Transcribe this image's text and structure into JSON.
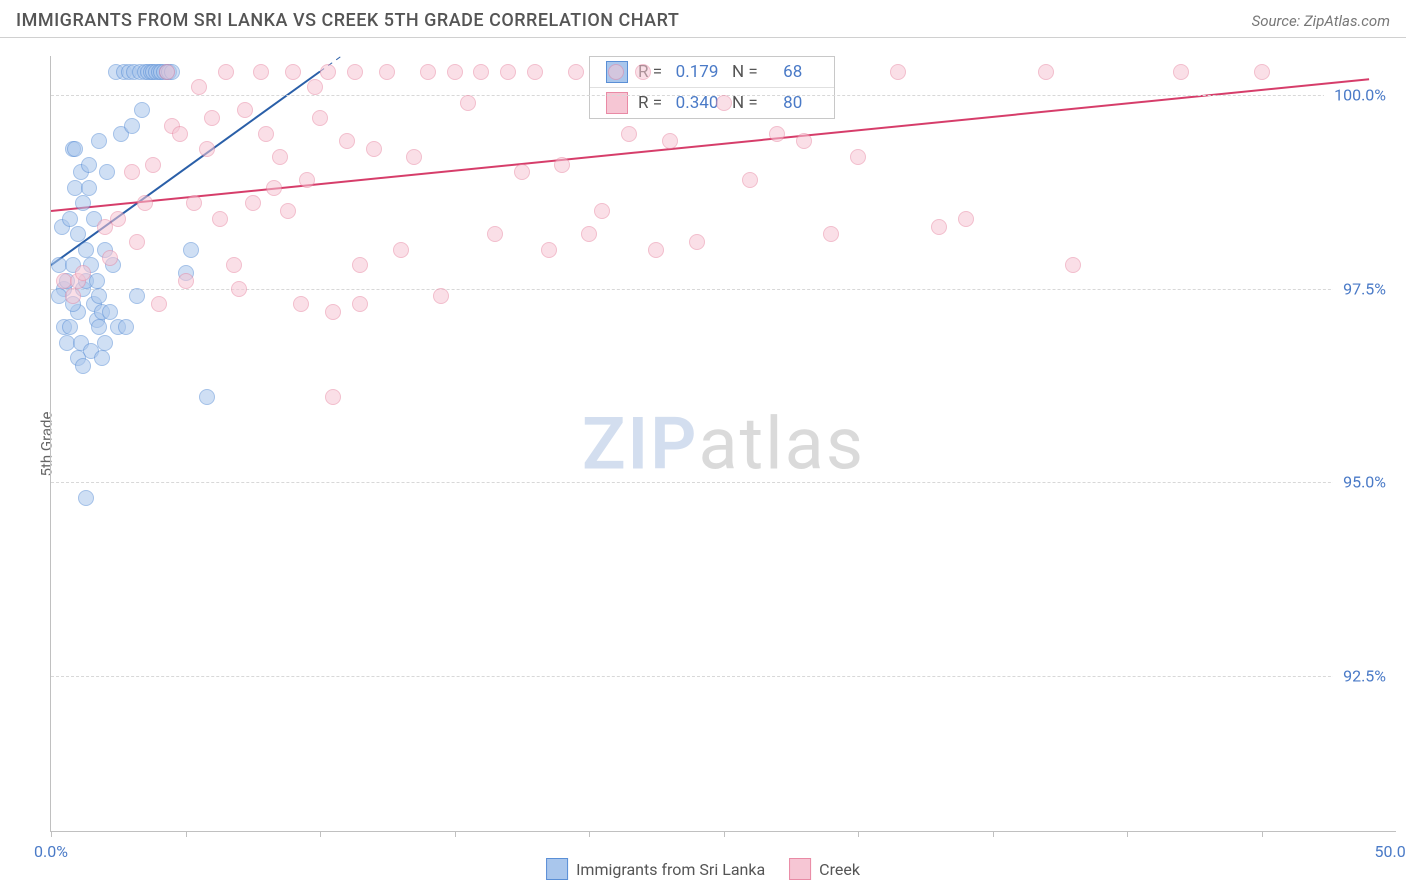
{
  "header": {
    "title": "IMMIGRANTS FROM SRI LANKA VS CREEK 5TH GRADE CORRELATION CHART",
    "source": "Source: ZipAtlas.com",
    "watermark_a": "ZIP",
    "watermark_b": "atlas"
  },
  "chart": {
    "type": "scatter",
    "background_color": "#ffffff",
    "grid_color": "#d8d8d8",
    "axis_color": "#c0c0c0",
    "label_color": "#4a7ac7",
    "ylabel": "5th Grade",
    "ylabel_fontsize": 15,
    "title_fontsize": 18,
    "xlim": [
      0,
      50
    ],
    "ylim": [
      90.5,
      100.5
    ],
    "yticks": [
      92.5,
      95.0,
      97.5,
      100.0
    ],
    "ytick_labels": [
      "92.5%",
      "95.0%",
      "97.5%",
      "100.0%"
    ],
    "xtick_marks": [
      0,
      5,
      10,
      15,
      20,
      25,
      30,
      35,
      40,
      45
    ],
    "xtick_labels": [
      {
        "x": 0,
        "label": "0.0%"
      },
      {
        "x": 50,
        "label": "50.0%"
      }
    ],
    "marker_radius": 8,
    "marker_opacity": 0.55,
    "series": [
      {
        "key": "sri_lanka",
        "name": "Immigrants from Sri Lanka",
        "fill_color": "#a9c6ec",
        "stroke_color": "#5a8fd6",
        "line_color": "#2a5fa8",
        "line_width": 2,
        "R": "0.179",
        "N": "68",
        "trend": {
          "x1": 0,
          "y1": 97.8,
          "x2": 10,
          "y2": 100.3,
          "dash_to_x": 13
        },
        "points": [
          [
            0.3,
            97.8
          ],
          [
            0.4,
            98.3
          ],
          [
            0.5,
            97.5
          ],
          [
            0.5,
            97.0
          ],
          [
            0.6,
            96.8
          ],
          [
            0.6,
            97.6
          ],
          [
            0.7,
            97.0
          ],
          [
            0.7,
            98.4
          ],
          [
            0.8,
            99.3
          ],
          [
            0.8,
            97.8
          ],
          [
            0.9,
            98.8
          ],
          [
            0.9,
            99.3
          ],
          [
            1.0,
            98.2
          ],
          [
            1.0,
            97.2
          ],
          [
            1.1,
            99.0
          ],
          [
            1.1,
            96.8
          ],
          [
            1.2,
            98.6
          ],
          [
            1.2,
            97.5
          ],
          [
            1.3,
            98.0
          ],
          [
            1.3,
            97.6
          ],
          [
            1.4,
            99.1
          ],
          [
            1.4,
            98.8
          ],
          [
            1.5,
            96.7
          ],
          [
            1.5,
            97.8
          ],
          [
            1.6,
            98.4
          ],
          [
            1.6,
            97.3
          ],
          [
            1.7,
            97.1
          ],
          [
            1.7,
            97.6
          ],
          [
            1.8,
            99.4
          ],
          [
            1.8,
            97.4
          ],
          [
            1.9,
            96.6
          ],
          [
            1.9,
            97.2
          ],
          [
            2.0,
            96.8
          ],
          [
            2.0,
            98.0
          ],
          [
            2.1,
            99.0
          ],
          [
            2.2,
            97.2
          ],
          [
            2.3,
            97.8
          ],
          [
            2.4,
            100.3
          ],
          [
            2.5,
            97.0
          ],
          [
            2.6,
            99.5
          ],
          [
            2.7,
            100.3
          ],
          [
            2.8,
            97.0
          ],
          [
            2.9,
            100.3
          ],
          [
            3.0,
            99.6
          ],
          [
            3.1,
            100.3
          ],
          [
            3.2,
            97.4
          ],
          [
            3.3,
            100.3
          ],
          [
            3.4,
            99.8
          ],
          [
            3.5,
            100.3
          ],
          [
            3.6,
            100.3
          ],
          [
            3.7,
            100.3
          ],
          [
            3.8,
            100.3
          ],
          [
            3.9,
            100.3
          ],
          [
            4.0,
            100.3
          ],
          [
            4.1,
            100.3
          ],
          [
            4.2,
            100.3
          ],
          [
            4.3,
            100.3
          ],
          [
            4.4,
            100.3
          ],
          [
            4.5,
            100.3
          ],
          [
            5.2,
            98.0
          ],
          [
            1.0,
            96.6
          ],
          [
            1.2,
            96.5
          ],
          [
            0.8,
            97.3
          ],
          [
            1.8,
            97.0
          ],
          [
            1.3,
            94.8
          ],
          [
            0.3,
            97.4
          ],
          [
            5.8,
            96.1
          ],
          [
            5.0,
            97.7
          ]
        ]
      },
      {
        "key": "creek",
        "name": "Creek",
        "fill_color": "#f6c6d4",
        "stroke_color": "#e98aa5",
        "line_color": "#d63d6a",
        "line_width": 2,
        "R": "0.340",
        "N": "80",
        "trend": {
          "x1": 0,
          "y1": 98.5,
          "x2": 49,
          "y2": 100.2
        },
        "points": [
          [
            0.5,
            97.6
          ],
          [
            0.8,
            97.4
          ],
          [
            1.0,
            97.6
          ],
          [
            1.2,
            97.7
          ],
          [
            2.0,
            98.3
          ],
          [
            2.2,
            97.9
          ],
          [
            2.5,
            98.4
          ],
          [
            3.0,
            99.0
          ],
          [
            3.2,
            98.1
          ],
          [
            3.5,
            98.6
          ],
          [
            3.8,
            99.1
          ],
          [
            4.0,
            97.3
          ],
          [
            4.3,
            100.3
          ],
          [
            4.5,
            99.6
          ],
          [
            4.8,
            99.5
          ],
          [
            5.0,
            97.6
          ],
          [
            5.3,
            98.6
          ],
          [
            5.5,
            100.1
          ],
          [
            5.8,
            99.3
          ],
          [
            6.0,
            99.7
          ],
          [
            6.3,
            98.4
          ],
          [
            6.5,
            100.3
          ],
          [
            6.8,
            97.8
          ],
          [
            7.0,
            97.5
          ],
          [
            7.2,
            99.8
          ],
          [
            7.5,
            98.6
          ],
          [
            7.8,
            100.3
          ],
          [
            8.0,
            99.5
          ],
          [
            8.3,
            98.8
          ],
          [
            8.5,
            99.2
          ],
          [
            8.8,
            98.5
          ],
          [
            9.0,
            100.3
          ],
          [
            9.3,
            97.3
          ],
          [
            9.5,
            98.9
          ],
          [
            9.8,
            100.1
          ],
          [
            10.0,
            99.7
          ],
          [
            10.3,
            100.3
          ],
          [
            10.5,
            97.2
          ],
          [
            11.0,
            99.4
          ],
          [
            11.3,
            100.3
          ],
          [
            11.5,
            97.8
          ],
          [
            12.0,
            99.3
          ],
          [
            12.5,
            100.3
          ],
          [
            13.0,
            98.0
          ],
          [
            13.5,
            99.2
          ],
          [
            14.0,
            100.3
          ],
          [
            14.5,
            97.4
          ],
          [
            15.0,
            100.3
          ],
          [
            15.5,
            99.9
          ],
          [
            16.0,
            100.3
          ],
          [
            16.5,
            98.2
          ],
          [
            17.0,
            100.3
          ],
          [
            17.5,
            99.0
          ],
          [
            18.0,
            100.3
          ],
          [
            18.5,
            98.0
          ],
          [
            19.0,
            99.1
          ],
          [
            19.5,
            100.3
          ],
          [
            20.0,
            98.2
          ],
          [
            20.5,
            98.5
          ],
          [
            21.0,
            100.3
          ],
          [
            21.5,
            99.5
          ],
          [
            22.0,
            100.3
          ],
          [
            22.5,
            98.0
          ],
          [
            23.0,
            99.4
          ],
          [
            24.0,
            98.1
          ],
          [
            25.0,
            99.9
          ],
          [
            26.0,
            98.9
          ],
          [
            27.0,
            99.5
          ],
          [
            28.0,
            99.4
          ],
          [
            29.0,
            98.2
          ],
          [
            30.0,
            99.2
          ],
          [
            31.5,
            100.3
          ],
          [
            33.0,
            98.3
          ],
          [
            34.0,
            98.4
          ],
          [
            37.0,
            100.3
          ],
          [
            38.0,
            97.8
          ],
          [
            42.0,
            100.3
          ],
          [
            45.0,
            100.3
          ],
          [
            10.5,
            96.1
          ],
          [
            11.5,
            97.3
          ]
        ]
      }
    ]
  },
  "legend_top": {
    "R_label": "R =",
    "N_label": "N ="
  },
  "bottom_legend": [
    {
      "swatch_fill": "#a9c6ec",
      "swatch_stroke": "#5a8fd6",
      "label": "Immigrants from Sri Lanka"
    },
    {
      "swatch_fill": "#f6c6d4",
      "swatch_stroke": "#e98aa5",
      "label": "Creek"
    }
  ]
}
